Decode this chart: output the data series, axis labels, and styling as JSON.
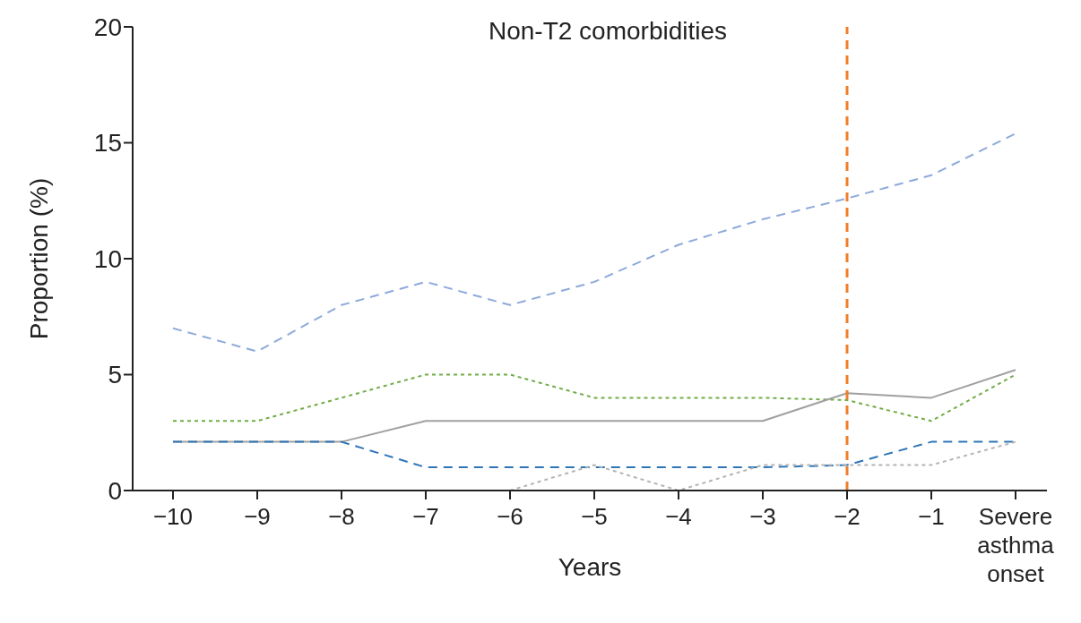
{
  "chart_data": {
    "type": "line",
    "title": "Non-T2 comorbidities",
    "xlabel": "Years",
    "ylabel": "Proportion (%)",
    "categories": [
      "−10",
      "−9",
      "−8",
      "−7",
      "−6",
      "−5",
      "−4",
      "−3",
      "−2",
      "−1",
      "Severe asthma onset"
    ],
    "series": [
      {
        "color": "#8eaadb",
        "line_style": "dashed",
        "values": [
          7.0,
          6.0,
          8.0,
          9.0,
          8.0,
          9.0,
          10.6,
          11.7,
          12.6,
          13.6,
          15.4
        ]
      },
      {
        "color": "#70ad47",
        "line_style": "dotted",
        "values": [
          3.0,
          3.0,
          4.0,
          5.0,
          5.0,
          4.0,
          4.0,
          4.0,
          3.9,
          3.0,
          5.0
        ]
      },
      {
        "color": "#a0a0a0",
        "line_style": "solid",
        "values": [
          2.1,
          2.1,
          2.1,
          3.0,
          3.0,
          3.0,
          3.0,
          3.0,
          4.2,
          4.0,
          5.2
        ]
      },
      {
        "color": "#2e75b6",
        "line_style": "dashed",
        "values": [
          2.1,
          2.1,
          2.1,
          1.0,
          1.0,
          1.0,
          1.0,
          1.0,
          1.1,
          2.1,
          2.1
        ]
      },
      {
        "color": "#b4b4b4",
        "line_style": "dotted",
        "values": [
          0,
          0,
          0,
          0,
          0,
          1.1,
          0,
          1.1,
          1.1,
          1.1,
          2.1
        ]
      }
    ],
    "ylim": [
      0,
      20
    ],
    "yticks": [
      0,
      5,
      10,
      15,
      20
    ],
    "grid": false,
    "legend": false,
    "marker": "none",
    "ref_lines": [
      {
        "axis": "x",
        "value": "−2",
        "color": "#f07f2a",
        "line_style": "dashed"
      }
    ]
  }
}
